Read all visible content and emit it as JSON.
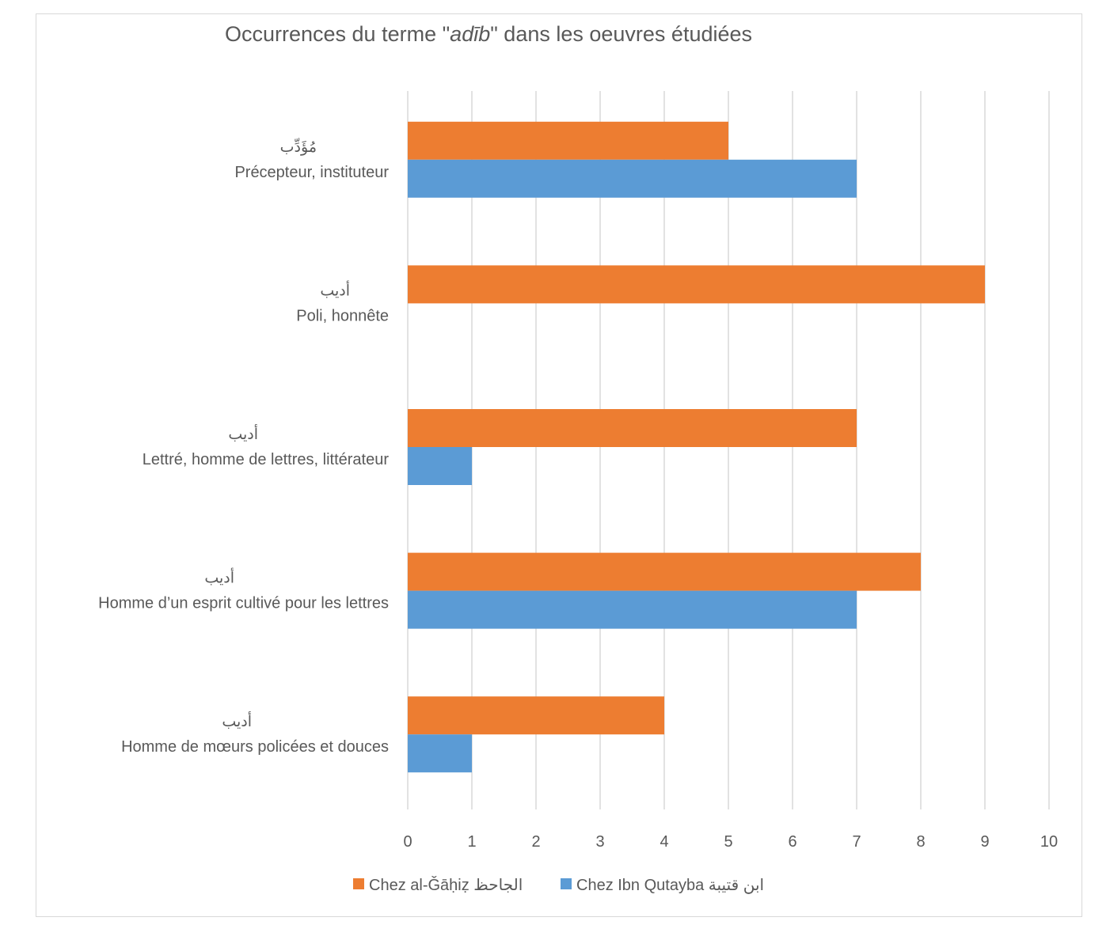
{
  "chart_data": {
    "type": "bar",
    "orientation": "horizontal",
    "title_parts": [
      "Occurrences du terme \"",
      "adīb",
      "\" dans les oeuvres étudiées"
    ],
    "categories": [
      {
        "arabic": "مُؤَدِّب",
        "label": "Précepteur, instituteur"
      },
      {
        "arabic": "أديب",
        "label": "Poli, honnête"
      },
      {
        "arabic": "أديب",
        "label": "Lettré, homme de lettres, littérateur"
      },
      {
        "arabic": "أديب",
        "label": "Homme d’un esprit cultivé pour les lettres"
      },
      {
        "arabic": "أديب",
        "label": "Homme de mœurs policées et douces"
      }
    ],
    "series": [
      {
        "name": "Chez al-Ǧāḥiẓ الجاحظ",
        "color": "#ed7d31",
        "values": [
          5,
          9,
          7,
          8,
          4
        ]
      },
      {
        "name": "Chez Ibn Qutayba ابن قتيبة",
        "color": "#5b9bd5",
        "values": [
          7,
          0,
          1,
          7,
          1
        ]
      }
    ],
    "xlim": [
      0,
      10
    ],
    "xticks": [
      "0",
      "1",
      "2",
      "3",
      "4",
      "5",
      "6",
      "7",
      "8",
      "9",
      "10"
    ],
    "grid": true,
    "legend": "bottom"
  }
}
